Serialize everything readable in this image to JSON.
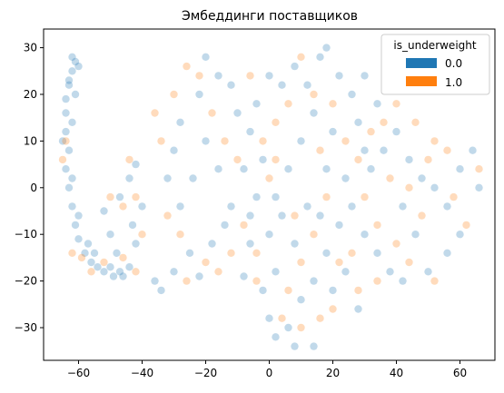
{
  "chart_data": {
    "type": "scatter",
    "title": "Эмбеддинги поставщиков",
    "xlabel": "",
    "ylabel": "",
    "xlim": [
      -71,
      71
    ],
    "ylim": [
      -37,
      34
    ],
    "xticks": [
      -60,
      -40,
      -20,
      0,
      20,
      40,
      60
    ],
    "yticks": [
      -30,
      -20,
      -10,
      0,
      10,
      20,
      30
    ],
    "grid": false,
    "legend": {
      "title": "is_underweight",
      "placement": "top-right",
      "entries": [
        {
          "label": "0.0",
          "color": "#1f77b4"
        },
        {
          "label": "1.0",
          "color": "#ff7f0e"
        }
      ]
    },
    "series": [
      {
        "name": "0.0",
        "color": "#1f77b4",
        "points": [
          [
            -61,
            27
          ],
          [
            -62,
            25
          ],
          [
            -63,
            22
          ],
          [
            -64,
            19
          ],
          [
            -64,
            16
          ],
          [
            -64,
            12
          ],
          [
            -63,
            8
          ],
          [
            -64,
            4
          ],
          [
            -63,
            0
          ],
          [
            -62,
            -4
          ],
          [
            -61,
            -8
          ],
          [
            -60,
            -11
          ],
          [
            -58,
            -14
          ],
          [
            -56,
            -16
          ],
          [
            -54,
            -17
          ],
          [
            -52,
            -18
          ],
          [
            -49,
            -19
          ],
          [
            -46,
            -19
          ],
          [
            -62,
            28
          ],
          [
            -60,
            26
          ],
          [
            -63,
            23
          ],
          [
            -61,
            20
          ],
          [
            -62,
            14
          ],
          [
            -65,
            10
          ],
          [
            -62,
            2
          ],
          [
            -60,
            -6
          ],
          [
            -57,
            -12
          ],
          [
            -55,
            -14
          ],
          [
            -50,
            -17
          ],
          [
            -47,
            -18
          ],
          [
            -48,
            -14
          ],
          [
            -50,
            -10
          ],
          [
            -52,
            -5
          ],
          [
            -47,
            -2
          ],
          [
            -44,
            2
          ],
          [
            -42,
            5
          ],
          [
            -40,
            -4
          ],
          [
            -42,
            -12
          ],
          [
            -44,
            -17
          ],
          [
            -43,
            -8
          ],
          [
            -36,
            -20
          ],
          [
            -34,
            -22
          ],
          [
            -30,
            -18
          ],
          [
            -25,
            -14
          ],
          [
            -22,
            -19
          ],
          [
            -18,
            -12
          ],
          [
            -14,
            -8
          ],
          [
            -12,
            -4
          ],
          [
            -16,
            4
          ],
          [
            -24,
            2
          ],
          [
            -20,
            10
          ],
          [
            -22,
            20
          ],
          [
            -16,
            24
          ],
          [
            -20,
            28
          ],
          [
            -28,
            14
          ],
          [
            -30,
            8
          ],
          [
            -32,
            2
          ],
          [
            -28,
            -4
          ],
          [
            -8,
            -19
          ],
          [
            -6,
            -12
          ],
          [
            -4,
            -2
          ],
          [
            -8,
            4
          ],
          [
            -6,
            12
          ],
          [
            -10,
            16
          ],
          [
            -12,
            22
          ],
          [
            -4,
            18
          ],
          [
            0,
            24
          ],
          [
            4,
            22
          ],
          [
            8,
            26
          ],
          [
            12,
            22
          ],
          [
            16,
            28
          ],
          [
            18,
            30
          ],
          [
            22,
            24
          ],
          [
            26,
            20
          ],
          [
            28,
            14
          ],
          [
            30,
            8
          ],
          [
            20,
            12
          ],
          [
            14,
            16
          ],
          [
            10,
            10
          ],
          [
            6,
            4
          ],
          [
            2,
            -2
          ],
          [
            0,
            -10
          ],
          [
            2,
            -18
          ],
          [
            -2,
            -22
          ],
          [
            0,
            -28
          ],
          [
            2,
            -32
          ],
          [
            6,
            -30
          ],
          [
            10,
            -24
          ],
          [
            14,
            -20
          ],
          [
            18,
            -14
          ],
          [
            22,
            -8
          ],
          [
            26,
            -4
          ],
          [
            30,
            -10
          ],
          [
            34,
            -14
          ],
          [
            38,
            -18
          ],
          [
            42,
            -20
          ],
          [
            36,
            8
          ],
          [
            40,
            12
          ],
          [
            44,
            6
          ],
          [
            48,
            2
          ],
          [
            52,
            0
          ],
          [
            56,
            -4
          ],
          [
            60,
            4
          ],
          [
            64,
            8
          ],
          [
            66,
            0
          ],
          [
            60,
            -10
          ],
          [
            56,
            -14
          ],
          [
            50,
            -18
          ],
          [
            46,
            -10
          ],
          [
            42,
            -4
          ],
          [
            34,
            18
          ],
          [
            30,
            24
          ],
          [
            32,
            4
          ],
          [
            24,
            2
          ],
          [
            18,
            4
          ],
          [
            12,
            -4
          ],
          [
            8,
            -12
          ],
          [
            4,
            -6
          ],
          [
            -2,
            6
          ],
          [
            -6,
            -6
          ],
          [
            16,
            -6
          ],
          [
            20,
            -22
          ],
          [
            24,
            -18
          ],
          [
            28,
            -26
          ],
          [
            8,
            -34
          ],
          [
            14,
            -34
          ]
        ]
      },
      {
        "name": "1.0",
        "color": "#ff7f0e",
        "points": [
          [
            -64,
            10
          ],
          [
            -65,
            6
          ],
          [
            -62,
            -14
          ],
          [
            -59,
            -15
          ],
          [
            -56,
            -18
          ],
          [
            -52,
            -16
          ],
          [
            -46,
            -15
          ],
          [
            -42,
            -18
          ],
          [
            -40,
            -10
          ],
          [
            -46,
            -4
          ],
          [
            -50,
            -2
          ],
          [
            -44,
            6
          ],
          [
            -42,
            -2
          ],
          [
            -36,
            16
          ],
          [
            -34,
            10
          ],
          [
            -32,
            -6
          ],
          [
            -28,
            -10
          ],
          [
            -26,
            -20
          ],
          [
            -20,
            -16
          ],
          [
            -16,
            -18
          ],
          [
            -12,
            -14
          ],
          [
            -26,
            26
          ],
          [
            -22,
            24
          ],
          [
            -18,
            16
          ],
          [
            -14,
            10
          ],
          [
            -30,
            20
          ],
          [
            -10,
            6
          ],
          [
            -8,
            -8
          ],
          [
            -4,
            -14
          ],
          [
            -2,
            10
          ],
          [
            2,
            14
          ],
          [
            6,
            18
          ],
          [
            10,
            28
          ],
          [
            14,
            20
          ],
          [
            20,
            18
          ],
          [
            24,
            10
          ],
          [
            28,
            6
          ],
          [
            18,
            -2
          ],
          [
            14,
            -10
          ],
          [
            10,
            -16
          ],
          [
            6,
            -22
          ],
          [
            4,
            -28
          ],
          [
            10,
            -30
          ],
          [
            16,
            -28
          ],
          [
            20,
            -26
          ],
          [
            26,
            -14
          ],
          [
            30,
            -2
          ],
          [
            34,
            -8
          ],
          [
            38,
            2
          ],
          [
            40,
            -12
          ],
          [
            44,
            -16
          ],
          [
            48,
            -6
          ],
          [
            52,
            -20
          ],
          [
            56,
            8
          ],
          [
            58,
            -2
          ],
          [
            62,
            -8
          ],
          [
            66,
            4
          ],
          [
            40,
            18
          ],
          [
            46,
            14
          ],
          [
            52,
            10
          ],
          [
            36,
            14
          ],
          [
            32,
            12
          ],
          [
            -6,
            24
          ],
          [
            0,
            2
          ],
          [
            -4,
            -20
          ],
          [
            8,
            -6
          ],
          [
            22,
            -16
          ],
          [
            28,
            -22
          ],
          [
            34,
            -20
          ],
          [
            44,
            0
          ],
          [
            50,
            6
          ],
          [
            16,
            8
          ],
          [
            2,
            6
          ]
        ]
      }
    ]
  }
}
